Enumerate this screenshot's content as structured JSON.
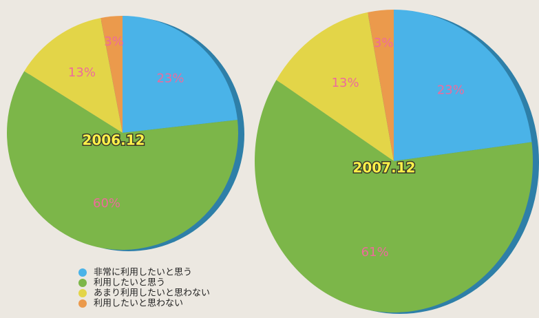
{
  "legend": {
    "labels": [
      "非常に利用したいと思う",
      "利用したいと思う",
      "あまり利用したいと思わない",
      "利用したいと思わない"
    ],
    "colors": [
      "#4ab3e8",
      "#7cb649",
      "#e3d548",
      "#eb9a4c"
    ]
  },
  "chart_data": [
    {
      "type": "pie",
      "title": "2006.12",
      "values": [
        23,
        60,
        13,
        3
      ],
      "value_labels": [
        "23%",
        "60%",
        "13%",
        "3%"
      ]
    },
    {
      "type": "pie",
      "title": "2007.12",
      "values": [
        23,
        61,
        13,
        3
      ],
      "value_labels": [
        "23%",
        "61%",
        "13%",
        "3%"
      ]
    }
  ]
}
